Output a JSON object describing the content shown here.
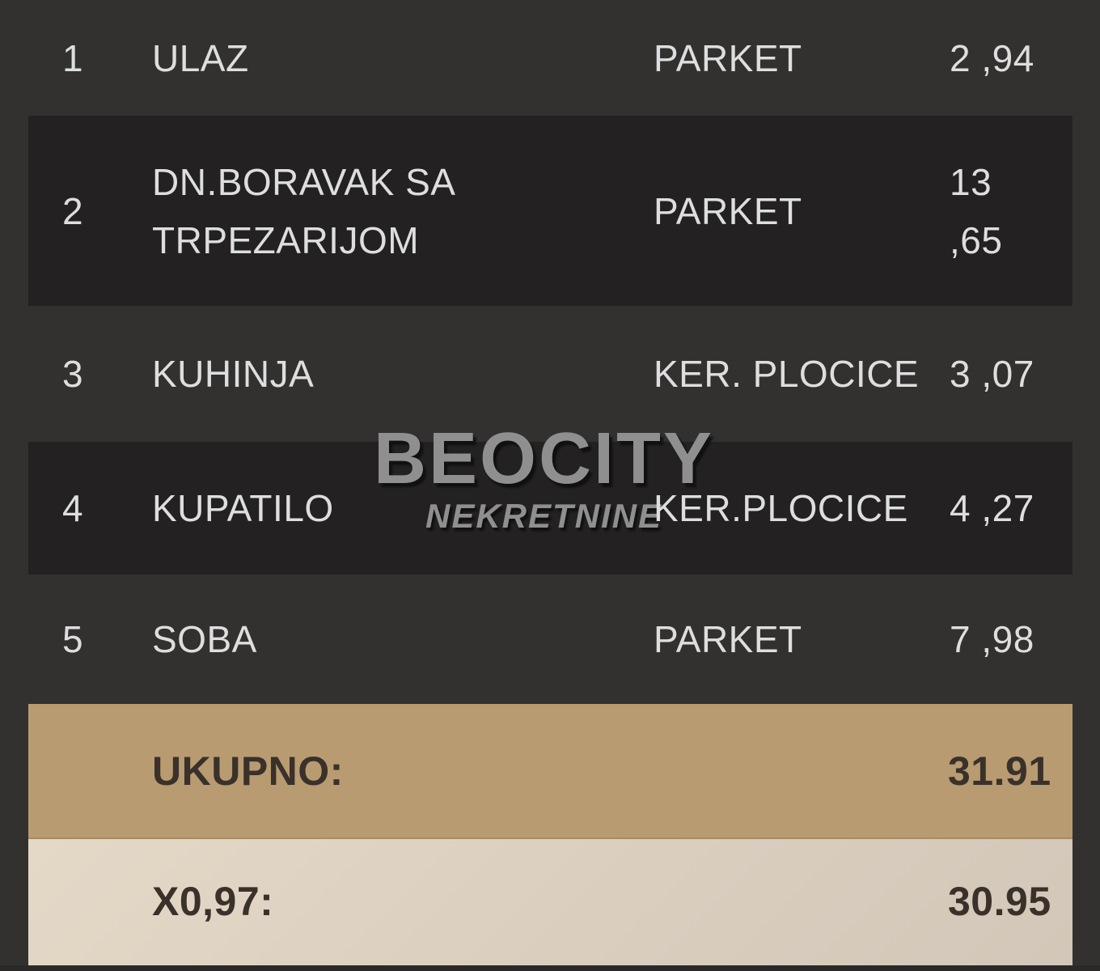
{
  "watermark": {
    "title": "BEOCITY",
    "subtitle": "NEKRETNINE"
  },
  "table": {
    "rows": [
      {
        "num": "1",
        "name": "ULAZ",
        "floor": "PARKET",
        "area": "2 ,94"
      },
      {
        "num": "2",
        "name": "DN.BORAVAK SA TRPEZARIJOM",
        "floor": "PARKET",
        "area": "13 ,65"
      },
      {
        "num": "3",
        "name": "KUHINJA",
        "floor": "KER. PLOCICE",
        "area": "3 ,07"
      },
      {
        "num": "4",
        "name": "KUPATILO",
        "floor": "KER.PLOCICE",
        "area": "4 ,27"
      },
      {
        "num": "5",
        "name": "SOBA",
        "floor": "PARKET",
        "area": "7 ,98"
      }
    ],
    "totals": [
      {
        "label": "UKUPNO:",
        "value": "31.91"
      },
      {
        "label": "X0,97:",
        "value": "30.95"
      }
    ]
  },
  "colors": {
    "page_background": "#333130",
    "highlight_row_background": "#232121",
    "total_row_background": "#b89b71",
    "reduced_total_row_background": "#ddd1c0",
    "row_text": "#dedede",
    "total_text": "#3a312a",
    "watermark_text": "#8f8f8f"
  }
}
